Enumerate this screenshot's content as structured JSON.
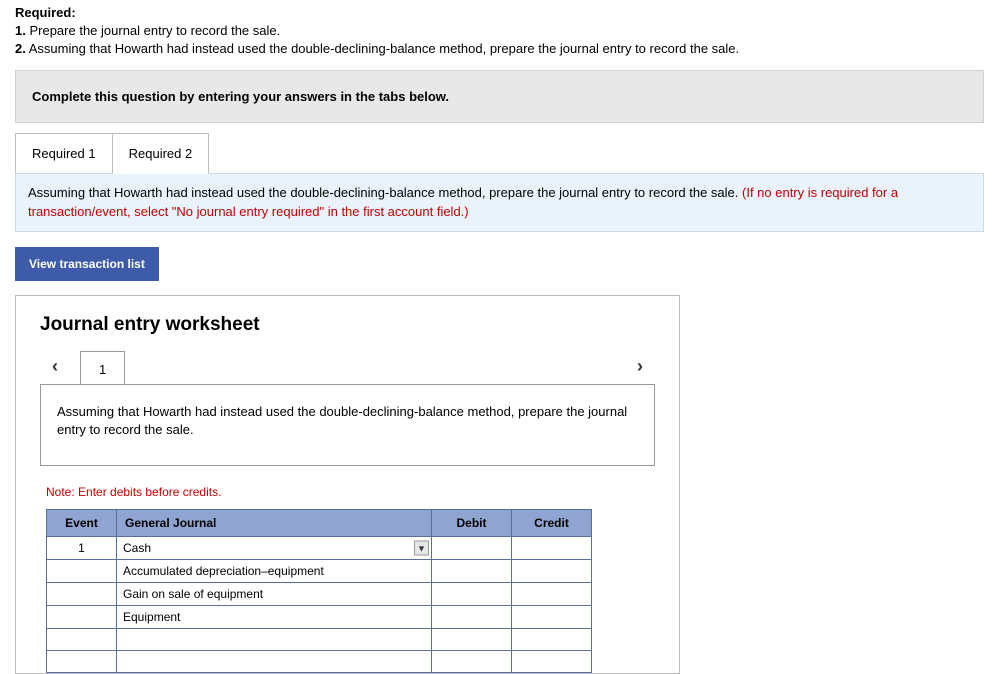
{
  "required": {
    "title": "Required:",
    "items": [
      {
        "num": "1.",
        "text": "Prepare the journal entry to record the sale."
      },
      {
        "num": "2.",
        "text": "Assuming that Howarth had instead used the double-declining-balance method, prepare the journal entry to record the sale."
      }
    ]
  },
  "gray_box": "Complete this question by entering your answers in the tabs below.",
  "tabs": [
    {
      "label": "Required 1",
      "active": false
    },
    {
      "label": "Required 2",
      "active": true
    }
  ],
  "blue_box": {
    "main": "Assuming that Howarth had instead used the double-declining-balance method, prepare the journal entry to record the sale. ",
    "red": "(If no entry is required for a transaction/event, select \"No journal entry required\" in the first account field.)"
  },
  "view_button": "View transaction list",
  "worksheet": {
    "title": "Journal entry worksheet",
    "page": "1",
    "instruction": "Assuming that Howarth had instead used the double-declining-balance method, prepare the journal entry to record the sale.",
    "note": "Note: Enter debits before credits.",
    "columns": [
      "Event",
      "General Journal",
      "Debit",
      "Credit"
    ],
    "rows": [
      {
        "event": "1",
        "account": "Cash",
        "debit": "",
        "credit": "",
        "dropdown": true
      },
      {
        "event": "",
        "account": "Accumulated depreciation–equipment",
        "debit": "",
        "credit": "",
        "dropdown": false
      },
      {
        "event": "",
        "account": "Gain on sale of equipment",
        "debit": "",
        "credit": "",
        "dropdown": false
      },
      {
        "event": "",
        "account": "Equipment",
        "debit": "",
        "credit": "",
        "dropdown": false
      },
      {
        "event": "",
        "account": "",
        "debit": "",
        "credit": "",
        "dropdown": false
      },
      {
        "event": "",
        "account": "",
        "debit": "",
        "credit": "",
        "dropdown": false
      }
    ]
  },
  "colors": {
    "header_bg": "#8fa4d1",
    "border": "#5a6fa0",
    "blue_box_bg": "#eaf3fb",
    "gray_box_bg": "#e8e8e8",
    "button_bg": "#3d5ba9",
    "red_text": "#c00000"
  }
}
